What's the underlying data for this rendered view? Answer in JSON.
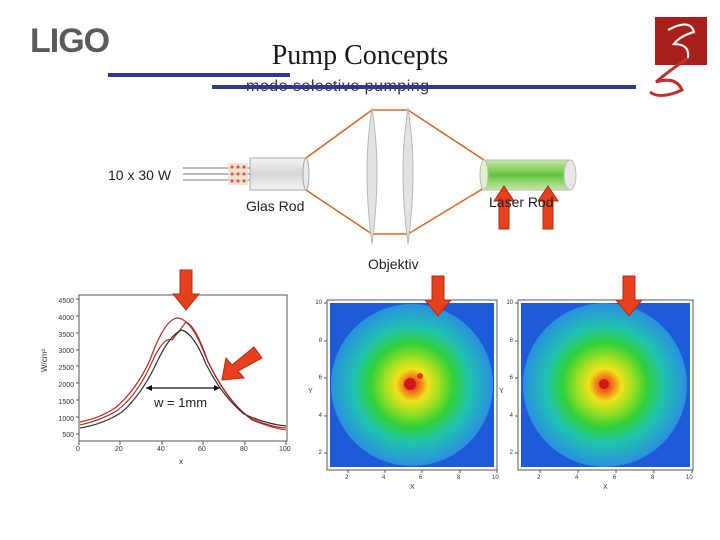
{
  "header": {
    "logo_text": "LIGO",
    "title": "Pump Concepts",
    "subtitle": "mode selective pumping"
  },
  "diagram": {
    "pump_label": "10 x 30 W",
    "glass_rod_label": "Glas Rod",
    "laser_rod_label": "Laser Rod",
    "objective_label": "Objektiv"
  },
  "profile_plot": {
    "annotation": "w = 1mm",
    "y_unit": "W/cm²",
    "x_label": "x",
    "y_ticks": [
      "4500",
      "4000",
      "3500",
      "3000",
      "2500",
      "2000",
      "1500",
      "1000",
      "500"
    ],
    "x_ticks": [
      "0",
      "20",
      "40",
      "60",
      "80",
      "100"
    ]
  },
  "heatmap_left": {
    "x_label": "X",
    "y_label": "Y",
    "x_ticks": [
      "2",
      "4",
      "6",
      "8",
      "10"
    ],
    "y_ticks": [
      "10",
      "8",
      "6",
      "4",
      "2"
    ]
  },
  "heatmap_right": {
    "x_label": "X",
    "y_label": "Y",
    "x_ticks": [
      "2",
      "4",
      "6",
      "8",
      "10"
    ],
    "y_ticks": [
      "10",
      "8",
      "6",
      "4",
      "2"
    ]
  },
  "colors": {
    "accent_line": "#2b3a8f",
    "arrow": "#e8401c",
    "beam": "#d4692b",
    "heatmap_bg": "#1e5bd8"
  }
}
